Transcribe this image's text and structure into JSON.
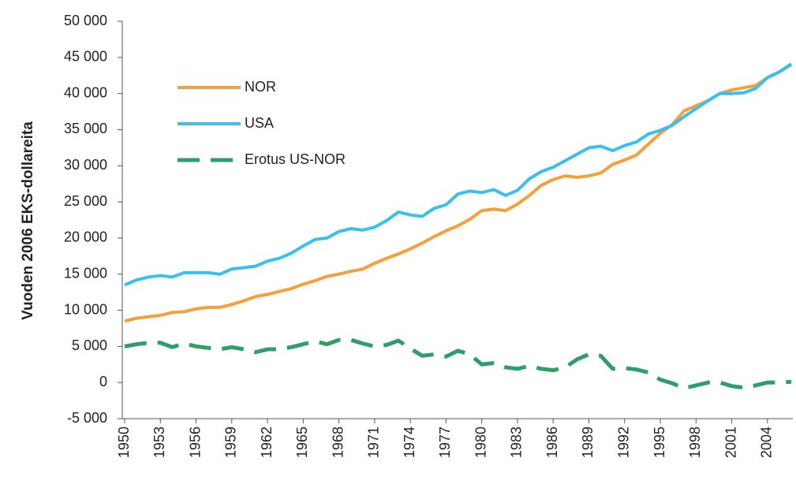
{
  "chart_data": {
    "type": "line",
    "y_label": "Vuoden 2006 EKS-dollareita",
    "x": [
      1950,
      1951,
      1952,
      1953,
      1954,
      1955,
      1956,
      1957,
      1958,
      1959,
      1960,
      1961,
      1962,
      1963,
      1964,
      1965,
      1966,
      1967,
      1968,
      1969,
      1970,
      1971,
      1972,
      1973,
      1974,
      1975,
      1976,
      1977,
      1978,
      1979,
      1980,
      1981,
      1982,
      1983,
      1984,
      1985,
      1986,
      1987,
      1988,
      1989,
      1990,
      1991,
      1992,
      1993,
      1994,
      1995,
      1996,
      1997,
      1998,
      1999,
      2000,
      2001,
      2002,
      2003,
      2004,
      2005,
      2006
    ],
    "xlim": [
      1950,
      2006
    ],
    "xticks": [
      1950,
      1953,
      1956,
      1959,
      1962,
      1965,
      1968,
      1971,
      1974,
      1977,
      1980,
      1983,
      1986,
      1989,
      1992,
      1995,
      1998,
      2001,
      2004
    ],
    "ylim": [
      -5000,
      50000
    ],
    "yticks": [
      {
        "value": -5000,
        "label": "-5 000"
      },
      0,
      {
        "value": 5000,
        "label": "5 000"
      },
      {
        "value": 10000,
        "label": "10 000"
      },
      {
        "value": 15000,
        "label": "15 000"
      },
      {
        "value": 20000,
        "label": "20 000"
      },
      {
        "value": 25000,
        "label": "25 000"
      },
      {
        "value": 30000,
        "label": "30 000"
      },
      {
        "value": 35000,
        "label": "35 000"
      },
      {
        "value": 40000,
        "label": "40 000"
      },
      {
        "value": 45000,
        "label": "45 000"
      },
      {
        "value": 50000,
        "label": "50 000"
      }
    ],
    "grid": false,
    "legend": "upper left",
    "series": [
      {
        "name": "NOR",
        "color": "#f5a03a",
        "dash": false,
        "values": [
          8500,
          8900,
          9100,
          9300,
          9700,
          9800,
          10200,
          10400,
          10400,
          10800,
          11300,
          11900,
          12200,
          12600,
          13000,
          13600,
          14100,
          14700,
          15000,
          15400,
          15700,
          16500,
          17200,
          17800,
          18500,
          19300,
          20200,
          21000,
          21700,
          22600,
          23800,
          24000,
          23800,
          24700,
          25900,
          27300,
          28100,
          28600,
          28400,
          28600,
          29000,
          30200,
          30800,
          31500,
          33000,
          34500,
          35700,
          37600,
          38300,
          39000,
          40000,
          40500,
          40800,
          41100,
          42200,
          43000,
          44000
        ]
      },
      {
        "name": "USA",
        "color": "#3ac0ee",
        "dash": false,
        "values": [
          13500,
          14200,
          14600,
          14800,
          14600,
          15200,
          15200,
          15200,
          15000,
          15700,
          15900,
          16100,
          16800,
          17200,
          17900,
          18900,
          19800,
          20000,
          20900,
          21300,
          21100,
          21500,
          22400,
          23600,
          23200,
          23000,
          24100,
          24600,
          26100,
          26500,
          26300,
          26700,
          25900,
          26600,
          28200,
          29200,
          29800,
          30700,
          31600,
          32500,
          32700,
          32100,
          32800,
          33300,
          34400,
          34900,
          35600,
          36800,
          37900,
          39000,
          40000,
          40000,
          40100,
          40700,
          42200,
          43000,
          44100
        ]
      },
      {
        "name": "Erotus US-NOR",
        "color": "#2f9e6c",
        "dash": true,
        "values": [
          5000,
          5300,
          5500,
          5500,
          4900,
          5400,
          5000,
          4800,
          4600,
          4900,
          4600,
          4200,
          4600,
          4600,
          4900,
          5300,
          5700,
          5300,
          5900,
          5900,
          5400,
          5000,
          5200,
          5800,
          4700,
          3700,
          3900,
          3600,
          4400,
          3900,
          2500,
          2700,
          2100,
          1900,
          2300,
          1900,
          1700,
          2100,
          3200,
          3900,
          3700,
          1900,
          2000,
          1800,
          1400,
          400,
          -100,
          -800,
          -400,
          0,
          0,
          -500,
          -700,
          -400,
          0,
          0,
          100
        ]
      }
    ]
  }
}
